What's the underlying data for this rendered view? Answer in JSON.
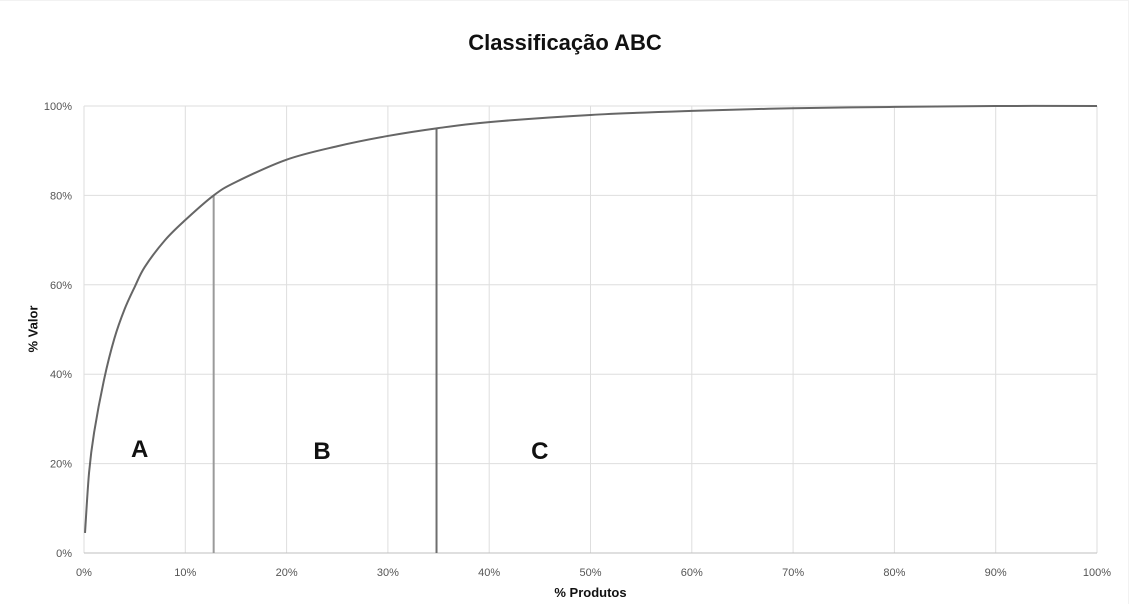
{
  "chart_data": {
    "type": "line",
    "title": "Classificação ABC",
    "xlabel": "% Produtos",
    "ylabel": "% Valor",
    "xlim": [
      0,
      100
    ],
    "ylim": [
      0,
      100
    ],
    "x_ticks": [
      "0%",
      "10%",
      "20%",
      "30%",
      "40%",
      "50%",
      "60%",
      "70%",
      "80%",
      "90%",
      "100%"
    ],
    "y_ticks": [
      "0%",
      "20%",
      "40%",
      "60%",
      "80%",
      "100%"
    ],
    "grid": true,
    "line_color": "#666666",
    "series": [
      {
        "x": [
          0.1,
          0.5,
          1,
          2,
          3,
          4,
          5,
          6,
          8,
          10,
          12.8,
          15,
          20,
          25,
          30,
          34.8,
          40,
          50,
          60,
          70,
          80,
          90,
          100
        ],
        "values": [
          4.5,
          18,
          27,
          39,
          48,
          54.5,
          59.5,
          64,
          70,
          74.5,
          80,
          83,
          88,
          91,
          93.3,
          95,
          96.4,
          98,
          98.9,
          99.5,
          99.8,
          100,
          100
        ]
      }
    ],
    "vertical_lines": [
      {
        "x": 12.8,
        "y_top": 80
      },
      {
        "x": 34.8,
        "y_top": 95
      }
    ],
    "annotations": [
      {
        "text": "A",
        "x": 5.5,
        "y": 23.5
      },
      {
        "text": "B",
        "x": 23.5,
        "y": 23
      },
      {
        "text": "C",
        "x": 45,
        "y": 23
      }
    ]
  }
}
